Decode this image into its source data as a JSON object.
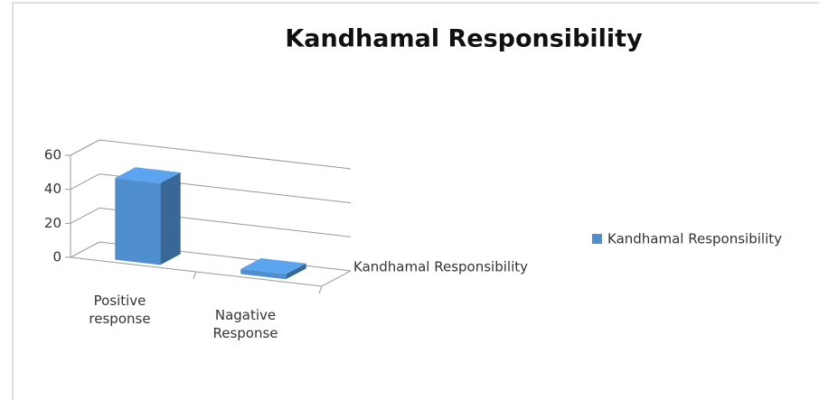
{
  "chart_data": {
    "type": "bar3d",
    "title": "Kandhamal Responsibility",
    "categories": [
      "Positive response",
      "Nagative Response"
    ],
    "series": [
      {
        "name": "Kandhamal Responsibility",
        "color": "#4f8fd0",
        "values": [
          48,
          3
        ]
      }
    ],
    "ylim": [
      0,
      60
    ],
    "yticks": [
      0,
      20,
      40,
      60
    ],
    "grid": true,
    "legend": "right"
  }
}
